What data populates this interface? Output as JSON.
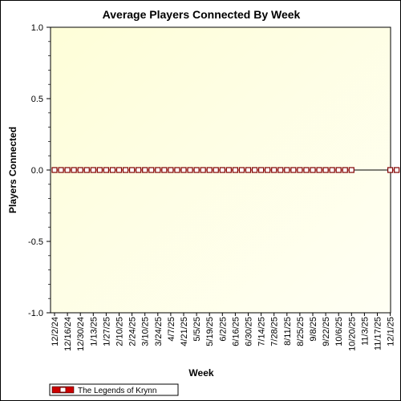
{
  "chart_data": {
    "type": "line",
    "title": "Average Players Connected By Week",
    "xlabel": "Week",
    "ylabel": "Players Connected",
    "ylim": [
      -1.0,
      1.0
    ],
    "yticks": [
      "1.0",
      "0.5",
      "0.0",
      "-0.5",
      "-1.0"
    ],
    "ytick_values": [
      1.0,
      0.5,
      0.0,
      -0.5,
      -1.0
    ],
    "xtick_labels": [
      "12/2/24",
      "12/16/24",
      "12/30/24",
      "1/13/25",
      "1/27/25",
      "2/10/25",
      "2/24/25",
      "3/10/25",
      "3/24/25",
      "4/7/25",
      "4/21/25",
      "5/5/25",
      "5/19/25",
      "6/2/25",
      "6/16/25",
      "6/30/25",
      "7/14/25",
      "7/28/25",
      "8/11/25",
      "8/25/25",
      "9/8/25",
      "9/22/25",
      "10/6/25",
      "10/20/25",
      "11/3/25",
      "11/17/25",
      "12/1/25"
    ],
    "x": [
      "12/2/24",
      "12/9/24",
      "12/16/24",
      "12/23/24",
      "12/30/24",
      "1/6/25",
      "1/13/25",
      "1/20/25",
      "1/27/25",
      "2/3/25",
      "2/10/25",
      "2/17/25",
      "2/24/25",
      "3/3/25",
      "3/10/25",
      "3/17/25",
      "3/24/25",
      "3/31/25",
      "4/7/25",
      "4/14/25",
      "4/21/25",
      "4/28/25",
      "5/5/25",
      "5/12/25",
      "5/19/25",
      "5/26/25",
      "6/2/25",
      "6/9/25",
      "6/16/25",
      "6/23/25",
      "6/30/25",
      "7/7/25",
      "7/14/25",
      "7/21/25",
      "7/28/25",
      "8/4/25",
      "8/11/25",
      "8/18/25",
      "8/25/25",
      "9/1/25",
      "9/8/25",
      "9/15/25",
      "9/22/25",
      "9/29/25",
      "10/6/25",
      "10/13/25",
      "10/20/25",
      "10/27/25",
      "11/3/25",
      "11/10/25",
      "11/17/25",
      "11/24/25",
      "12/1/25",
      "12/8/25"
    ],
    "series": [
      {
        "name": "The Legends of Krynn",
        "color": "#cc0000",
        "values": [
          0,
          0,
          0,
          0,
          0,
          0,
          0,
          0,
          0,
          0,
          0,
          0,
          0,
          0,
          0,
          0,
          0,
          0,
          0,
          0,
          0,
          0,
          0,
          0,
          0,
          0,
          0,
          0,
          0,
          0,
          0,
          0,
          0,
          0,
          0,
          0,
          0,
          0,
          0,
          0,
          0,
          0,
          0,
          0,
          0,
          0,
          0,
          null,
          null,
          null,
          null,
          null,
          0,
          0
        ]
      }
    ],
    "grid": false,
    "legend": "bottom-left",
    "plot_background": "#ffffee"
  }
}
